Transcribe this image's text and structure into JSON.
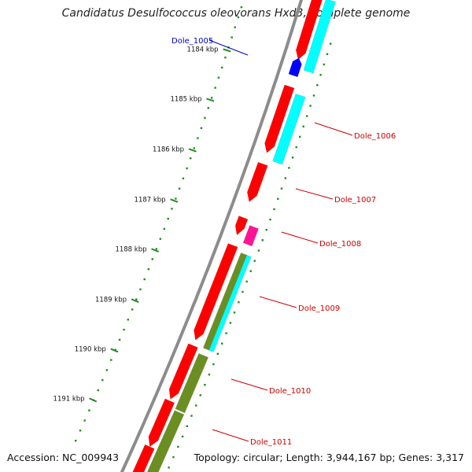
{
  "title": "Candidatus Desulfococcus oleovorans Hxd3, complete genome",
  "accession": "Accession: NC_009943",
  "topology": "Topology: circular; Length: 3,944,167 bp; Genes: 3,317",
  "colors": {
    "backbone": "#8c8c8c",
    "forward_cds": "#ff0000",
    "reverse_cds": "#ff0000",
    "blue_feature": "#0000ff",
    "magenta_feature": "#ff1493",
    "cyan_feature": "#00ffff",
    "olive_feature": "#6b8e23",
    "tick": "#228b22",
    "label_red": "#cc0000",
    "label_blue": "#0000cc"
  },
  "kbp_labels": [
    "1184 kbp",
    "1185 kbp",
    "1186 kbp",
    "1187 kbp",
    "1188 kbp",
    "1189 kbp",
    "1190 kbp",
    "1191 kbp"
  ],
  "gene_labels": [
    "Dole_1005",
    "Dole_1006",
    "Dole_1007",
    "Dole_1008",
    "Dole_1009",
    "Dole_1010",
    "Dole_1011"
  ]
}
